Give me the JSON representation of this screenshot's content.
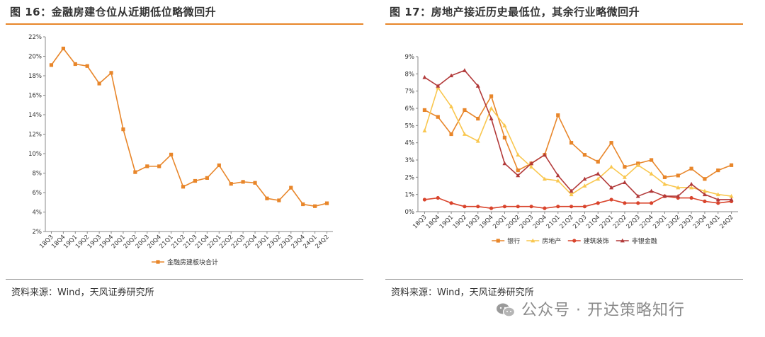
{
  "left": {
    "title": "图 16：金融房建仓位从近期低位略微回升",
    "source": "资料来源：Wind，天风证券研究所"
  },
  "right": {
    "title": "图 17：房地产接近历史最低位，其余行业略微回升",
    "source": "资料来源：Wind，天风证券研究所"
  },
  "watermark": {
    "text": "公众号 · 开达策略知行",
    "icon": "wechat-icon"
  },
  "colors": {
    "orange": "#e8862a",
    "yellow": "#f9c74f",
    "red": "#d9442c",
    "darkred": "#b23a3a"
  },
  "chart_data": [
    {
      "type": "line",
      "title": "",
      "xlabel": "",
      "ylabel": "",
      "categories": [
        "18Q3",
        "18Q4",
        "19Q1",
        "19Q2",
        "19Q3",
        "19Q4",
        "20Q1",
        "20Q2",
        "20Q3",
        "20Q4",
        "21Q1",
        "21Q2",
        "21Q3",
        "21Q4",
        "22Q1",
        "22Q2",
        "22Q3",
        "22Q4",
        "23Q1",
        "23Q2",
        "23Q3",
        "23Q4",
        "24Q1",
        "24Q2"
      ],
      "ylim": [
        0.02,
        0.22
      ],
      "yticks": [
        "2%",
        "4%",
        "6%",
        "8%",
        "10%",
        "12%",
        "14%",
        "16%",
        "18%",
        "20%",
        "22%"
      ],
      "grid": false,
      "legend_position": "bottom",
      "series": [
        {
          "name": "金融房建板块合计",
          "color": "#e8862a",
          "marker": "square",
          "values": [
            0.191,
            0.208,
            0.192,
            0.19,
            0.172,
            0.183,
            0.125,
            0.081,
            0.087,
            0.087,
            0.099,
            0.066,
            0.072,
            0.075,
            0.088,
            0.069,
            0.071,
            0.07,
            0.054,
            0.052,
            0.065,
            0.048,
            0.046,
            0.049
          ]
        }
      ]
    },
    {
      "type": "line",
      "title": "",
      "xlabel": "",
      "ylabel": "",
      "categories": [
        "18Q3",
        "18Q4",
        "19Q1",
        "19Q2",
        "19Q3",
        "19Q4",
        "20Q1",
        "20Q2",
        "20Q3",
        "20Q4",
        "21Q1",
        "21Q2",
        "21Q3",
        "21Q4",
        "22Q1",
        "22Q2",
        "22Q3",
        "22Q4",
        "23Q1",
        "23Q2",
        "23Q3",
        "23Q4",
        "24Q1",
        "24Q2"
      ],
      "ylim": [
        0,
        0.09
      ],
      "yticks": [
        "0%",
        "1%",
        "2%",
        "3%",
        "4%",
        "5%",
        "6%",
        "7%",
        "8%",
        "9%"
      ],
      "grid": false,
      "legend_position": "bottom",
      "series": [
        {
          "name": "银行",
          "color": "#e8862a",
          "marker": "square",
          "values": [
            0.059,
            0.055,
            0.045,
            0.059,
            0.054,
            0.067,
            0.043,
            0.024,
            0.028,
            0.033,
            0.056,
            0.04,
            0.033,
            0.029,
            0.04,
            0.026,
            0.028,
            0.03,
            0.02,
            0.021,
            0.025,
            0.019,
            0.024,
            0.027
          ]
        },
        {
          "name": "房地产",
          "color": "#f9c74f",
          "marker": "triangle",
          "values": [
            0.047,
            0.072,
            0.061,
            0.045,
            0.041,
            0.06,
            0.05,
            0.033,
            0.026,
            0.019,
            0.018,
            0.01,
            0.015,
            0.019,
            0.026,
            0.02,
            0.027,
            0.022,
            0.016,
            0.014,
            0.014,
            0.012,
            0.01,
            0.009
          ]
        },
        {
          "name": "建筑装饰",
          "color": "#d9442c",
          "marker": "circle",
          "values": [
            0.007,
            0.008,
            0.005,
            0.003,
            0.003,
            0.002,
            0.003,
            0.003,
            0.003,
            0.002,
            0.003,
            0.003,
            0.003,
            0.005,
            0.007,
            0.005,
            0.005,
            0.005,
            0.009,
            0.008,
            0.008,
            0.006,
            0.005,
            0.006
          ]
        },
        {
          "name": "非银金融",
          "color": "#b23a3a",
          "marker": "triangle",
          "values": [
            0.078,
            0.073,
            0.079,
            0.082,
            0.073,
            0.054,
            0.028,
            0.021,
            0.028,
            0.033,
            0.021,
            0.012,
            0.019,
            0.022,
            0.014,
            0.017,
            0.009,
            0.012,
            0.009,
            0.009,
            0.016,
            0.01,
            0.007,
            0.007
          ]
        }
      ]
    }
  ]
}
